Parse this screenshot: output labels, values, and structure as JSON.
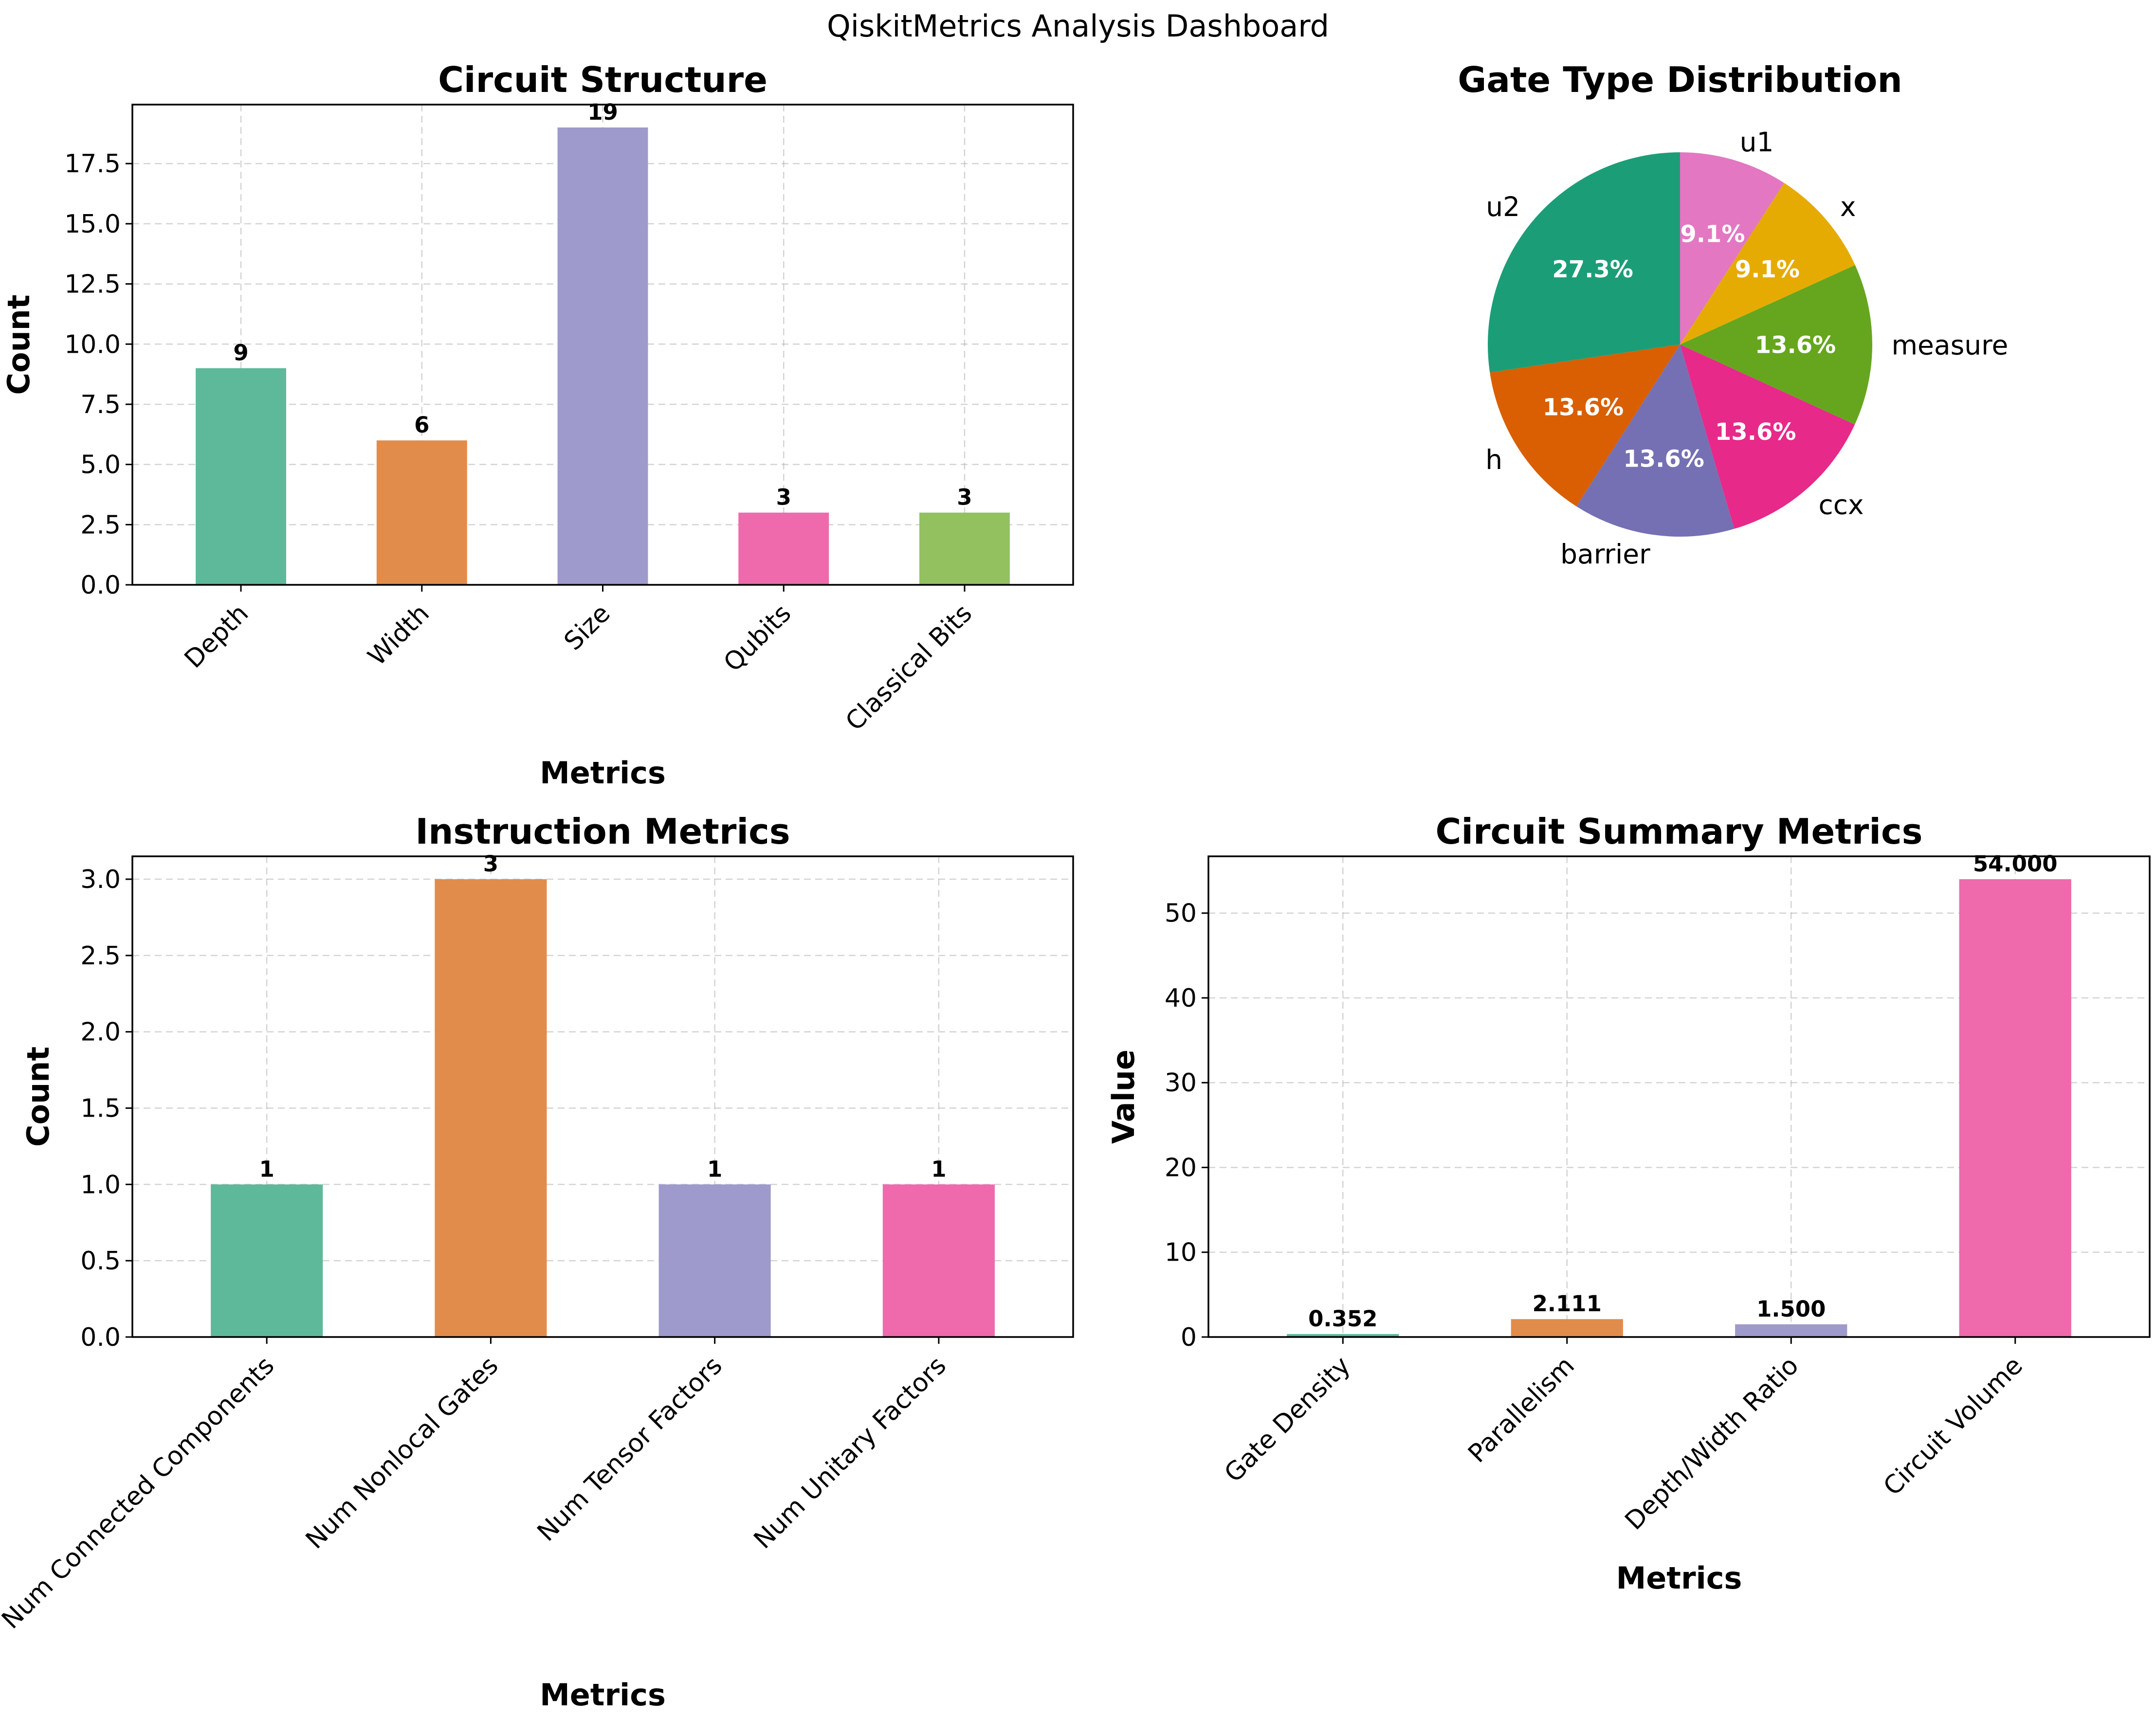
{
  "figure": {
    "title": "QiskitMetrics Analysis Dashboard"
  },
  "chart_data": [
    {
      "type": "bar",
      "title": "Circuit Structure",
      "xlabel": "Metrics",
      "ylabel": "Count",
      "categories": [
        "Depth",
        "Width",
        "Size",
        "Qubits",
        "Classical Bits"
      ],
      "values": [
        9,
        6,
        19,
        3,
        3
      ],
      "value_labels": [
        "9",
        "6",
        "19",
        "3",
        "3"
      ],
      "ylim": [
        0,
        19.95
      ],
      "yticks": [
        0,
        2.5,
        5,
        7.5,
        10,
        12.5,
        15,
        17.5
      ],
      "ytick_labels": [
        "0.0",
        "2.5",
        "5.0",
        "7.5",
        "10.0",
        "12.5",
        "15.0",
        "17.5"
      ],
      "colors": [
        "#5DB99A",
        "#E28C4C",
        "#9E9ACB",
        "#EE6AAC",
        "#93C160"
      ],
      "grid": true,
      "xtick_rotation": 45
    },
    {
      "type": "pie",
      "title": "Gate Type Distribution",
      "labels": [
        "u2",
        "h",
        "barrier",
        "ccx",
        "measure",
        "x",
        "u1"
      ],
      "values": [
        27.3,
        13.6,
        13.6,
        13.6,
        13.6,
        9.1,
        9.1
      ],
      "pct_labels": [
        "27.3%",
        "13.6%",
        "13.6%",
        "13.6%",
        "13.6%",
        "9.1%",
        "9.1%"
      ],
      "colors": [
        "#1B9E77",
        "#D95F02",
        "#7570B3",
        "#E7298A",
        "#66A61E",
        "#E6AB02",
        "#E377C2"
      ]
    },
    {
      "type": "bar",
      "title": "Instruction Metrics",
      "xlabel": "Metrics",
      "ylabel": "Count",
      "categories": [
        "Num Connected Components",
        "Num Nonlocal Gates",
        "Num Tensor Factors",
        "Num Unitary Factors"
      ],
      "values": [
        1,
        3,
        1,
        1
      ],
      "value_labels": [
        "1",
        "3",
        "1",
        "1"
      ],
      "ylim": [
        0,
        3.15
      ],
      "yticks": [
        0,
        0.5,
        1,
        1.5,
        2,
        2.5,
        3
      ],
      "ytick_labels": [
        "0.0",
        "0.5",
        "1.0",
        "1.5",
        "2.0",
        "2.5",
        "3.0"
      ],
      "colors": [
        "#5DB99A",
        "#E28C4C",
        "#9E9ACB",
        "#EE6AAC"
      ],
      "grid": true,
      "xtick_rotation": 45
    },
    {
      "type": "bar",
      "title": "Circuit Summary Metrics",
      "xlabel": "Metrics",
      "ylabel": "Value",
      "categories": [
        "Gate Density",
        "Parallelism",
        "Depth/Width Ratio",
        "Circuit Volume"
      ],
      "values": [
        0.352,
        2.111,
        1.5,
        54.0
      ],
      "value_labels": [
        "0.352",
        "2.111",
        "1.500",
        "54.000"
      ],
      "ylim": [
        0,
        56.7
      ],
      "yticks": [
        0,
        10,
        20,
        30,
        40,
        50
      ],
      "ytick_labels": [
        "0",
        "10",
        "20",
        "30",
        "40",
        "50"
      ],
      "colors": [
        "#5DB99A",
        "#E28C4C",
        "#9E9ACB",
        "#EE6AAC"
      ],
      "grid": true,
      "xtick_rotation": 45
    }
  ]
}
